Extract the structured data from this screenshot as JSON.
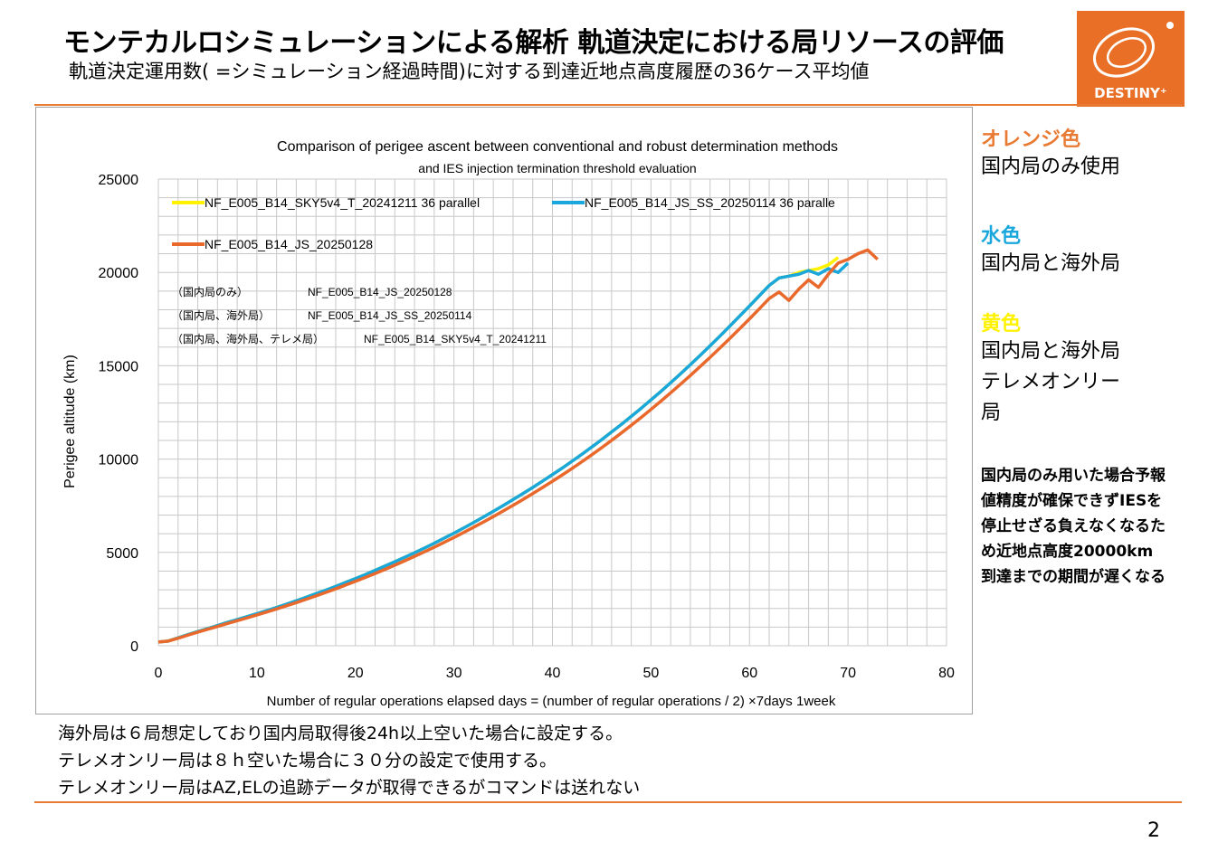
{
  "header": {
    "title": "モンテカルロシミュレーションによる解析 軌道決定における局リソースの評価",
    "subtitle": "軌道決定運用数( =シミュレーション経過時間)に対する到達近地点高度履歴の36ケース平均値",
    "logo_text": "DESTINY⁺"
  },
  "colors": {
    "accent": "#E97A33",
    "orange": "#E9692C",
    "cyan": "#1AA7DC",
    "yellow": "#FFF200"
  },
  "side": {
    "orange_heading": "オレンジ色",
    "orange_desc": "国内局のみ使用",
    "cyan_heading": "水色",
    "cyan_desc": "国内局と海外局",
    "yellow_heading": "黄色",
    "yellow_desc_1": "国内局と海外局",
    "yellow_desc_2": "テレメオンリー",
    "yellow_desc_3": "局",
    "note": "国内局のみ用いた場合予報値精度が確保できずIESを停止せざる負えなくなるため近地点高度20000km到達までの期間が遅くなる"
  },
  "footer": {
    "line1": "海外局は６局想定しており国内局取得後24h以上空いた場合に設定する。",
    "line2": "テレメオンリー局は８ｈ空いた場合に３０分の設定で使用する。",
    "line3": "テレメオンリー局はAZ,ELの追跡データが取得できるがコマンドは送れない"
  },
  "page_number": "2",
  "chart_data": {
    "type": "line",
    "title": "Comparison of perigee ascent between conventional and robust determination methods",
    "subtitle": "and IES injection termination threshold evaluation",
    "xlabel": "Number of regular operations elapsed days = (number of regular operations / 2) ×7days 1week",
    "ylabel": "Perigee altitude (km)",
    "xlim": [
      0,
      80
    ],
    "ylim": [
      0,
      25000
    ],
    "x_ticks": [
      "0",
      "10",
      "20",
      "30",
      "40",
      "50",
      "60",
      "70",
      "80"
    ],
    "y_ticks": [
      "0",
      "5000",
      "10000",
      "15000",
      "20000",
      "25000"
    ],
    "grid": true,
    "legend": {
      "position": "top-left"
    },
    "annotations": [
      {
        "label": "（国内局のみ）",
        "value": "NF_E005_B14_JS_20250128"
      },
      {
        "label": "（国内局、海外局）",
        "value": "NF_E005_B14_JS_SS_20250114"
      },
      {
        "label": "（国内局、海外局、テレメ局）",
        "value": "NF_E005_B14_SKY5v4_T_20241211"
      }
    ],
    "series": [
      {
        "name": "NF_E005_B14_SKY5v4_T_20241211 36 parallel",
        "color": "#FFF200",
        "x": [
          0,
          1,
          2,
          3,
          4,
          5,
          6,
          7,
          8,
          9,
          10,
          11,
          12,
          13,
          14,
          15,
          16,
          17,
          18,
          19,
          20,
          21,
          22,
          23,
          24,
          25,
          26,
          27,
          28,
          29,
          30,
          31,
          32,
          33,
          34,
          35,
          36,
          37,
          38,
          39,
          40,
          41,
          42,
          43,
          44,
          45,
          46,
          47,
          48,
          49,
          50,
          51,
          52,
          53,
          54,
          55,
          56,
          57,
          58,
          59,
          60,
          61,
          62,
          63,
          64,
          65,
          66,
          67,
          68,
          69
        ],
        "y": [
          200,
          250,
          420,
          600,
          760,
          920,
          1080,
          1250,
          1400,
          1560,
          1720,
          1880,
          2050,
          2230,
          2410,
          2600,
          2790,
          2980,
          3180,
          3390,
          3600,
          3810,
          4040,
          4270,
          4500,
          4740,
          4980,
          5230,
          5490,
          5760,
          6030,
          6310,
          6600,
          6900,
          7200,
          7510,
          7830,
          8150,
          8480,
          8820,
          9170,
          9520,
          9890,
          10260,
          10650,
          11040,
          11450,
          11860,
          12290,
          12720,
          13170,
          13620,
          14090,
          14570,
          15060,
          15560,
          16070,
          16590,
          17120,
          17660,
          18200,
          18750,
          19300,
          19700,
          19800,
          20000,
          20100,
          20200,
          20400,
          20800
        ]
      },
      {
        "name": "NF_E005_B14_JS_SS_20250114 36 paralle",
        "color": "#1AA7DC",
        "x": [
          0,
          1,
          2,
          3,
          4,
          5,
          6,
          7,
          8,
          9,
          10,
          11,
          12,
          13,
          14,
          15,
          16,
          17,
          18,
          19,
          20,
          21,
          22,
          23,
          24,
          25,
          26,
          27,
          28,
          29,
          30,
          31,
          32,
          33,
          34,
          35,
          36,
          37,
          38,
          39,
          40,
          41,
          42,
          43,
          44,
          45,
          46,
          47,
          48,
          49,
          50,
          51,
          52,
          53,
          54,
          55,
          56,
          57,
          58,
          59,
          60,
          61,
          62,
          63,
          64,
          65,
          66,
          67,
          68,
          69,
          70
        ],
        "y": [
          200,
          250,
          420,
          600,
          760,
          920,
          1080,
          1250,
          1400,
          1560,
          1720,
          1880,
          2050,
          2230,
          2410,
          2600,
          2790,
          2980,
          3180,
          3390,
          3600,
          3810,
          4040,
          4270,
          4500,
          4740,
          4980,
          5230,
          5490,
          5760,
          6030,
          6310,
          6600,
          6900,
          7200,
          7510,
          7830,
          8150,
          8480,
          8820,
          9170,
          9520,
          9890,
          10260,
          10650,
          11040,
          11450,
          11860,
          12290,
          12720,
          13170,
          13620,
          14090,
          14570,
          15060,
          15560,
          16070,
          16590,
          17120,
          17660,
          18200,
          18750,
          19300,
          19700,
          19800,
          19900,
          20100,
          19900,
          20200,
          20000,
          20500
        ]
      },
      {
        "name": "NF_E005_B14_JS_20250128",
        "color": "#E9692C",
        "x": [
          0,
          1,
          2,
          3,
          4,
          5,
          6,
          7,
          8,
          9,
          10,
          11,
          12,
          13,
          14,
          15,
          16,
          17,
          18,
          19,
          20,
          21,
          22,
          23,
          24,
          25,
          26,
          27,
          28,
          29,
          30,
          31,
          32,
          33,
          34,
          35,
          36,
          37,
          38,
          39,
          40,
          41,
          42,
          43,
          44,
          45,
          46,
          47,
          48,
          49,
          50,
          51,
          52,
          53,
          54,
          55,
          56,
          57,
          58,
          59,
          60,
          61,
          62,
          63,
          64,
          65,
          66,
          67,
          68,
          69,
          70,
          71,
          72,
          73
        ],
        "y": [
          200,
          250,
          400,
          570,
          730,
          880,
          1030,
          1190,
          1340,
          1490,
          1650,
          1810,
          1970,
          2140,
          2310,
          2490,
          2670,
          2860,
          3050,
          3250,
          3450,
          3660,
          3870,
          4090,
          4320,
          4550,
          4790,
          5030,
          5280,
          5540,
          5800,
          6070,
          6350,
          6630,
          6920,
          7220,
          7520,
          7830,
          8150,
          8480,
          8810,
          9150,
          9500,
          9860,
          10230,
          10610,
          11000,
          11400,
          11810,
          12230,
          12660,
          13100,
          13550,
          14010,
          14480,
          14960,
          15450,
          15950,
          16460,
          16980,
          17510,
          18050,
          18600,
          18950,
          18500,
          19100,
          19600,
          19200,
          19900,
          20500,
          20700,
          21000,
          21200,
          20700
        ]
      }
    ]
  }
}
